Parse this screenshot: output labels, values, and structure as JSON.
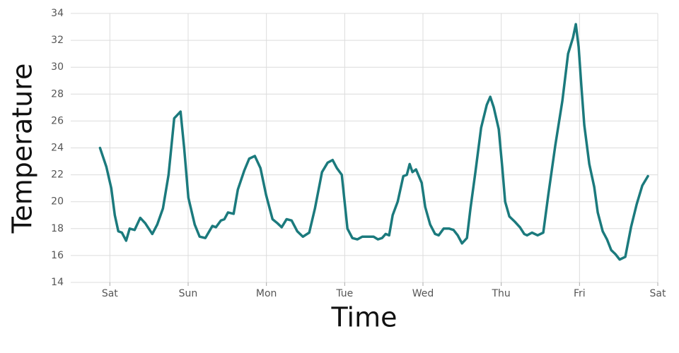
{
  "chart_data": {
    "type": "line",
    "x_label": "Time",
    "y_label": "Temperature",
    "xlim": [
      -0.5,
      7
    ],
    "ylim": [
      14,
      34
    ],
    "xticks": [
      {
        "value": 0,
        "label": "Sat"
      },
      {
        "value": 1,
        "label": "Sun"
      },
      {
        "value": 2,
        "label": "Mon"
      },
      {
        "value": 3,
        "label": "Tue"
      },
      {
        "value": 4,
        "label": "Wed"
      },
      {
        "value": 5,
        "label": "Thu"
      },
      {
        "value": 6,
        "label": "Fri"
      },
      {
        "value": 7,
        "label": "Sat"
      }
    ],
    "yticks": [
      14,
      16,
      18,
      20,
      22,
      24,
      26,
      28,
      30,
      32,
      34
    ],
    "grid": true,
    "series": [
      {
        "color": "#1b7a7d",
        "x": [
          -0.126,
          -0.045,
          0.018,
          0.063,
          0.108,
          0.154,
          0.208,
          0.253,
          0.316,
          0.388,
          0.452,
          0.542,
          0.605,
          0.678,
          0.75,
          0.822,
          0.903,
          0.949,
          1.003,
          1.084,
          1.147,
          1.22,
          1.31,
          1.355,
          1.418,
          1.463,
          1.509,
          1.581,
          1.635,
          1.716,
          1.78,
          1.852,
          1.924,
          1.996,
          2.078,
          2.141,
          2.195,
          2.258,
          2.322,
          2.394,
          2.466,
          2.547,
          2.62,
          2.71,
          2.782,
          2.846,
          2.9,
          2.963,
          2.999,
          3.035,
          3.098,
          3.162,
          3.225,
          3.297,
          3.369,
          3.424,
          3.478,
          3.523,
          3.568,
          3.613,
          3.677,
          3.749,
          3.794,
          3.83,
          3.866,
          3.911,
          3.984,
          4.029,
          4.092,
          4.155,
          4.201,
          4.264,
          4.336,
          4.39,
          4.444,
          4.499,
          4.562,
          4.607,
          4.67,
          4.743,
          4.815,
          4.86,
          4.905,
          4.968,
          5.014,
          5.05,
          5.104,
          5.176,
          5.239,
          5.294,
          5.33,
          5.393,
          5.465,
          5.537,
          5.601,
          5.691,
          5.781,
          5.854,
          5.917,
          5.953,
          5.989,
          6.025,
          6.061,
          6.125,
          6.188,
          6.233,
          6.296,
          6.351,
          6.405,
          6.459,
          6.513,
          6.585,
          6.658,
          6.73,
          6.802,
          6.874
        ],
        "values": [
          24,
          22.6,
          21,
          19,
          17.8,
          17.7,
          17.1,
          18,
          17.9,
          18.8,
          18.4,
          17.6,
          18.3,
          19.5,
          22,
          26.2,
          26.7,
          24,
          20.3,
          18.3,
          17.4,
          17.3,
          18.2,
          18.1,
          18.6,
          18.7,
          19.2,
          19.1,
          20.9,
          22.3,
          23.2,
          23.4,
          22.5,
          20.5,
          18.7,
          18.4,
          18.1,
          18.7,
          18.6,
          17.8,
          17.4,
          17.7,
          19.5,
          22.2,
          22.9,
          23.1,
          22.5,
          22,
          20,
          18,
          17.3,
          17.2,
          17.4,
          17.4,
          17.4,
          17.2,
          17.3,
          17.6,
          17.5,
          19,
          20,
          21.9,
          22,
          22.8,
          22.2,
          22.4,
          21.4,
          19.6,
          18.3,
          17.6,
          17.5,
          18,
          18,
          17.9,
          17.5,
          16.9,
          17.3,
          19.5,
          22.2,
          25.5,
          27.2,
          27.8,
          27,
          25.4,
          22.5,
          20,
          18.9,
          18.5,
          18.1,
          17.6,
          17.5,
          17.7,
          17.5,
          17.7,
          20.5,
          24.2,
          27.5,
          31,
          32.2,
          33.2,
          31.5,
          28.5,
          25.7,
          22.8,
          21.1,
          19.2,
          17.8,
          17.2,
          16.4,
          16.1,
          15.7,
          15.9,
          18.1,
          19.8,
          21.2,
          21.9
        ]
      }
    ]
  }
}
